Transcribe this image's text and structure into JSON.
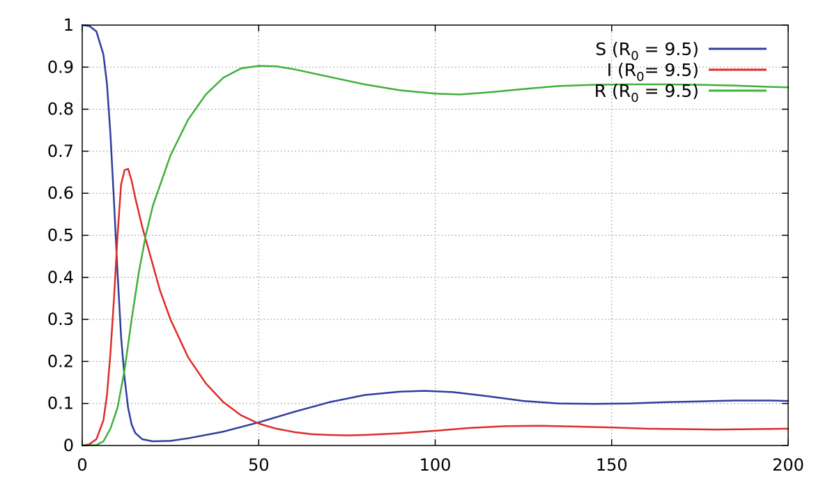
{
  "chart_data": {
    "type": "line",
    "title": "",
    "xlabel": "",
    "ylabel": "",
    "xlim": [
      0,
      200
    ],
    "ylim": [
      0,
      1
    ],
    "x_ticks": [
      "0",
      "50",
      "100",
      "150",
      "200"
    ],
    "y_ticks": [
      "0",
      "0.1",
      "0.2",
      "0.3",
      "0.4",
      "0.5",
      "0.6",
      "0.7",
      "0.8",
      "0.9",
      "1"
    ],
    "grid": true,
    "legend_position": "top-right",
    "series": [
      {
        "name": "S (R0 = 9.5)",
        "legend_main": "S (R",
        "legend_sub": "0",
        "legend_tail": " = 9.5)",
        "color": "#2e3d9e",
        "points": [
          [
            0,
            1.0
          ],
          [
            2,
            0.998
          ],
          [
            4,
            0.985
          ],
          [
            6,
            0.93
          ],
          [
            7,
            0.86
          ],
          [
            8,
            0.74
          ],
          [
            9,
            0.58
          ],
          [
            10,
            0.41
          ],
          [
            11,
            0.26
          ],
          [
            12,
            0.16
          ],
          [
            13,
            0.09
          ],
          [
            14,
            0.05
          ],
          [
            15,
            0.03
          ],
          [
            17,
            0.015
          ],
          [
            20,
            0.01
          ],
          [
            25,
            0.011
          ],
          [
            30,
            0.017
          ],
          [
            40,
            0.033
          ],
          [
            50,
            0.055
          ],
          [
            60,
            0.08
          ],
          [
            70,
            0.103
          ],
          [
            80,
            0.12
          ],
          [
            90,
            0.128
          ],
          [
            97,
            0.13
          ],
          [
            105,
            0.127
          ],
          [
            115,
            0.117
          ],
          [
            125,
            0.106
          ],
          [
            135,
            0.1
          ],
          [
            145,
            0.099
          ],
          [
            155,
            0.1
          ],
          [
            165,
            0.103
          ],
          [
            175,
            0.105
          ],
          [
            185,
            0.107
          ],
          [
            195,
            0.107
          ],
          [
            200,
            0.106
          ]
        ]
      },
      {
        "name": "I (R0= 9.5)",
        "legend_main": "I (R",
        "legend_sub": "0",
        "legend_tail": "= 9.5)",
        "color": "#e02a2a",
        "points": [
          [
            0,
            0.0
          ],
          [
            2,
            0.003
          ],
          [
            4,
            0.015
          ],
          [
            6,
            0.06
          ],
          [
            7,
            0.12
          ],
          [
            8,
            0.22
          ],
          [
            9,
            0.35
          ],
          [
            10,
            0.5
          ],
          [
            11,
            0.62
          ],
          [
            12,
            0.655
          ],
          [
            13,
            0.658
          ],
          [
            14,
            0.63
          ],
          [
            15,
            0.59
          ],
          [
            17,
            0.52
          ],
          [
            20,
            0.43
          ],
          [
            22,
            0.37
          ],
          [
            25,
            0.3
          ],
          [
            30,
            0.21
          ],
          [
            35,
            0.148
          ],
          [
            40,
            0.103
          ],
          [
            45,
            0.072
          ],
          [
            50,
            0.052
          ],
          [
            55,
            0.04
          ],
          [
            60,
            0.032
          ],
          [
            65,
            0.027
          ],
          [
            70,
            0.025
          ],
          [
            75,
            0.024
          ],
          [
            80,
            0.025
          ],
          [
            90,
            0.029
          ],
          [
            100,
            0.035
          ],
          [
            110,
            0.042
          ],
          [
            120,
            0.046
          ],
          [
            130,
            0.047
          ],
          [
            140,
            0.045
          ],
          [
            150,
            0.043
          ],
          [
            160,
            0.04
          ],
          [
            170,
            0.039
          ],
          [
            180,
            0.038
          ],
          [
            190,
            0.039
          ],
          [
            200,
            0.04
          ]
        ]
      },
      {
        "name": "R (R0 = 9.5)",
        "legend_main": "R (R",
        "legend_sub": "0",
        "legend_tail": " = 9.5)",
        "color": "#3fb03a",
        "points": [
          [
            0,
            0.0
          ],
          [
            4,
            0.001
          ],
          [
            6,
            0.01
          ],
          [
            8,
            0.04
          ],
          [
            10,
            0.09
          ],
          [
            12,
            0.18
          ],
          [
            14,
            0.3
          ],
          [
            16,
            0.41
          ],
          [
            18,
            0.5
          ],
          [
            20,
            0.57
          ],
          [
            25,
            0.69
          ],
          [
            30,
            0.775
          ],
          [
            35,
            0.835
          ],
          [
            40,
            0.875
          ],
          [
            45,
            0.897
          ],
          [
            50,
            0.903
          ],
          [
            55,
            0.902
          ],
          [
            60,
            0.895
          ],
          [
            70,
            0.877
          ],
          [
            80,
            0.859
          ],
          [
            90,
            0.845
          ],
          [
            100,
            0.837
          ],
          [
            107,
            0.835
          ],
          [
            115,
            0.84
          ],
          [
            125,
            0.848
          ],
          [
            135,
            0.855
          ],
          [
            145,
            0.858
          ],
          [
            155,
            0.859
          ],
          [
            165,
            0.859
          ],
          [
            175,
            0.858
          ],
          [
            185,
            0.856
          ],
          [
            195,
            0.853
          ],
          [
            200,
            0.852
          ]
        ]
      }
    ]
  }
}
